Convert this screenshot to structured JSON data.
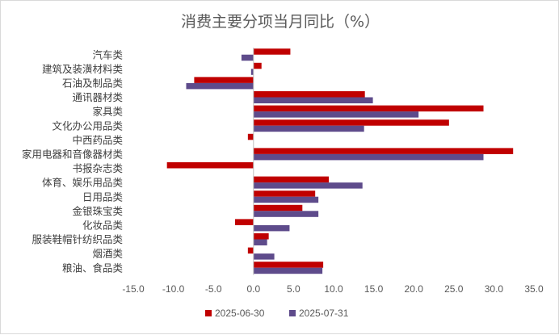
{
  "chart_data": {
    "type": "bar",
    "orientation": "horizontal",
    "title": "消费主要分项当月同比（%）",
    "categories": [
      "汽车类",
      "建筑及装潢材料类",
      "石油及制品类",
      "通讯器材类",
      "家具类",
      "文化办公用品类",
      "中西药品类",
      "家用电器和音像器材类",
      "书报杂志类",
      "体育、娱乐用品类",
      "日用品类",
      "金银珠宝类",
      "化妆品类",
      "服装鞋帽针纺织品类",
      "烟酒类",
      "粮油、食品类"
    ],
    "series": [
      {
        "name": "2025-06-30",
        "color": "#c00000",
        "values": [
          4.6,
          1.0,
          -7.4,
          13.9,
          28.7,
          24.4,
          -0.7,
          32.4,
          -10.8,
          9.4,
          7.7,
          6.1,
          -2.3,
          1.9,
          -0.7,
          8.7
        ]
      },
      {
        "name": "2025-07-31",
        "color": "#5e4b8b",
        "values": [
          -1.5,
          -0.3,
          -8.4,
          14.9,
          20.6,
          13.8,
          0.0,
          28.7,
          0.0,
          13.6,
          8.1,
          8.1,
          4.5,
          1.7,
          2.6,
          8.6
        ]
      }
    ],
    "xlim": [
      -15,
      35
    ],
    "xticks": [
      "-15.0",
      "-10.0",
      "-5.0",
      "0.0",
      "5.0",
      "10.0",
      "15.0",
      "20.0",
      "25.0",
      "30.0",
      "35.0"
    ],
    "grid": false,
    "legend_position": "bottom"
  }
}
